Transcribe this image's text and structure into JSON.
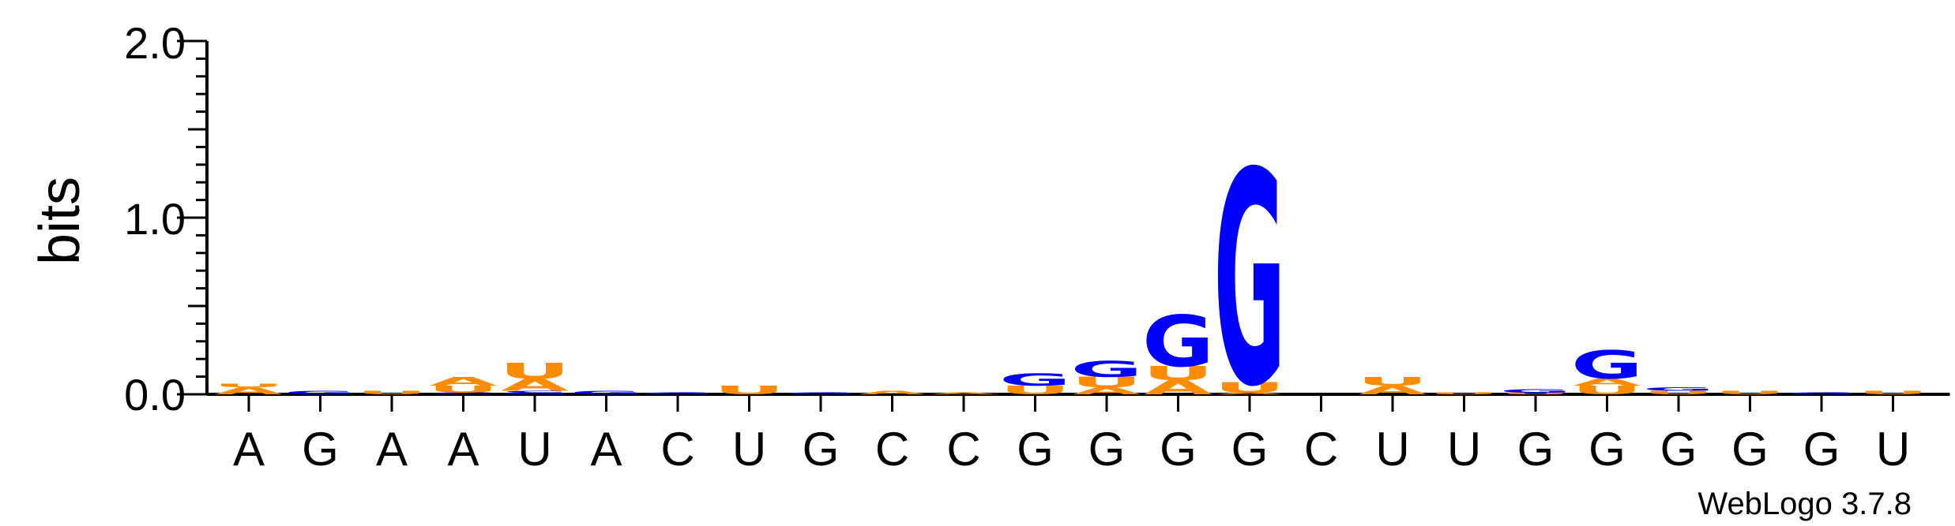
{
  "chart_data": {
    "type": "sequence-logo",
    "ylabel": "bits",
    "ylim": [
      0,
      2.0
    ],
    "y_ticks": [
      "0.0",
      "1.0",
      "2.0"
    ],
    "positions": [
      "A",
      "G",
      "A",
      "A",
      "U",
      "A",
      "C",
      "U",
      "G",
      "C",
      "C",
      "G",
      "G",
      "G",
      "G",
      "C",
      "U",
      "U",
      "G",
      "G",
      "G",
      "G",
      "G",
      "U"
    ],
    "credit": "WebLogo 3.7.8",
    "colors": {
      "A": "#ff8c00",
      "U": "#ff8c00",
      "G": "#0000ff",
      "C": "#0000ff"
    },
    "stacks": [
      [
        {
          "letter": "A",
          "h": 0.04
        },
        {
          "letter": "U",
          "h": 0.02
        }
      ],
      [
        {
          "letter": "G",
          "h": 0.02
        }
      ],
      [
        {
          "letter": "U",
          "h": 0.02
        }
      ],
      [
        {
          "letter": "C",
          "h": 0.01
        },
        {
          "letter": "U",
          "h": 0.04
        },
        {
          "letter": "A",
          "h": 0.05
        }
      ],
      [
        {
          "letter": "G",
          "h": 0.01
        },
        {
          "letter": "C",
          "h": 0.01
        },
        {
          "letter": "A",
          "h": 0.07
        },
        {
          "letter": "U",
          "h": 0.09
        }
      ],
      [
        {
          "letter": "G",
          "h": 0.02
        }
      ],
      [
        {
          "letter": "G",
          "h": 0.01
        }
      ],
      [
        {
          "letter": "U",
          "h": 0.05
        }
      ],
      [
        {
          "letter": "G",
          "h": 0.01
        }
      ],
      [
        {
          "letter": "A",
          "h": 0.02
        }
      ],
      [
        {
          "letter": "A",
          "h": 0.01
        }
      ],
      [
        {
          "letter": "U",
          "h": 0.05
        },
        {
          "letter": "G",
          "h": 0.07
        }
      ],
      [
        {
          "letter": "A",
          "h": 0.04
        },
        {
          "letter": "U",
          "h": 0.06
        },
        {
          "letter": "G",
          "h": 0.09
        }
      ],
      [
        {
          "letter": "A",
          "h": 0.08
        },
        {
          "letter": "U",
          "h": 0.08
        },
        {
          "letter": "G",
          "h": 0.29
        }
      ],
      [
        {
          "letter": "A",
          "h": 0.01
        },
        {
          "letter": "U",
          "h": 0.06
        },
        {
          "letter": "G",
          "h": 1.21
        }
      ],
      [],
      [
        {
          "letter": "A",
          "h": 0.05
        },
        {
          "letter": "U",
          "h": 0.05
        }
      ],
      [
        {
          "letter": "U",
          "h": 0.01
        }
      ],
      [
        {
          "letter": "U",
          "h": 0.01
        },
        {
          "letter": "G",
          "h": 0.02
        }
      ],
      [
        {
          "letter": "U",
          "h": 0.05
        },
        {
          "letter": "A",
          "h": 0.04
        },
        {
          "letter": "G",
          "h": 0.16
        }
      ],
      [
        {
          "letter": "U",
          "h": 0.02
        },
        {
          "letter": "G",
          "h": 0.02
        }
      ],
      [
        {
          "letter": "U",
          "h": 0.02
        }
      ],
      [
        {
          "letter": "G",
          "h": 0.01
        }
      ],
      [
        {
          "letter": "U",
          "h": 0.02
        }
      ]
    ]
  }
}
